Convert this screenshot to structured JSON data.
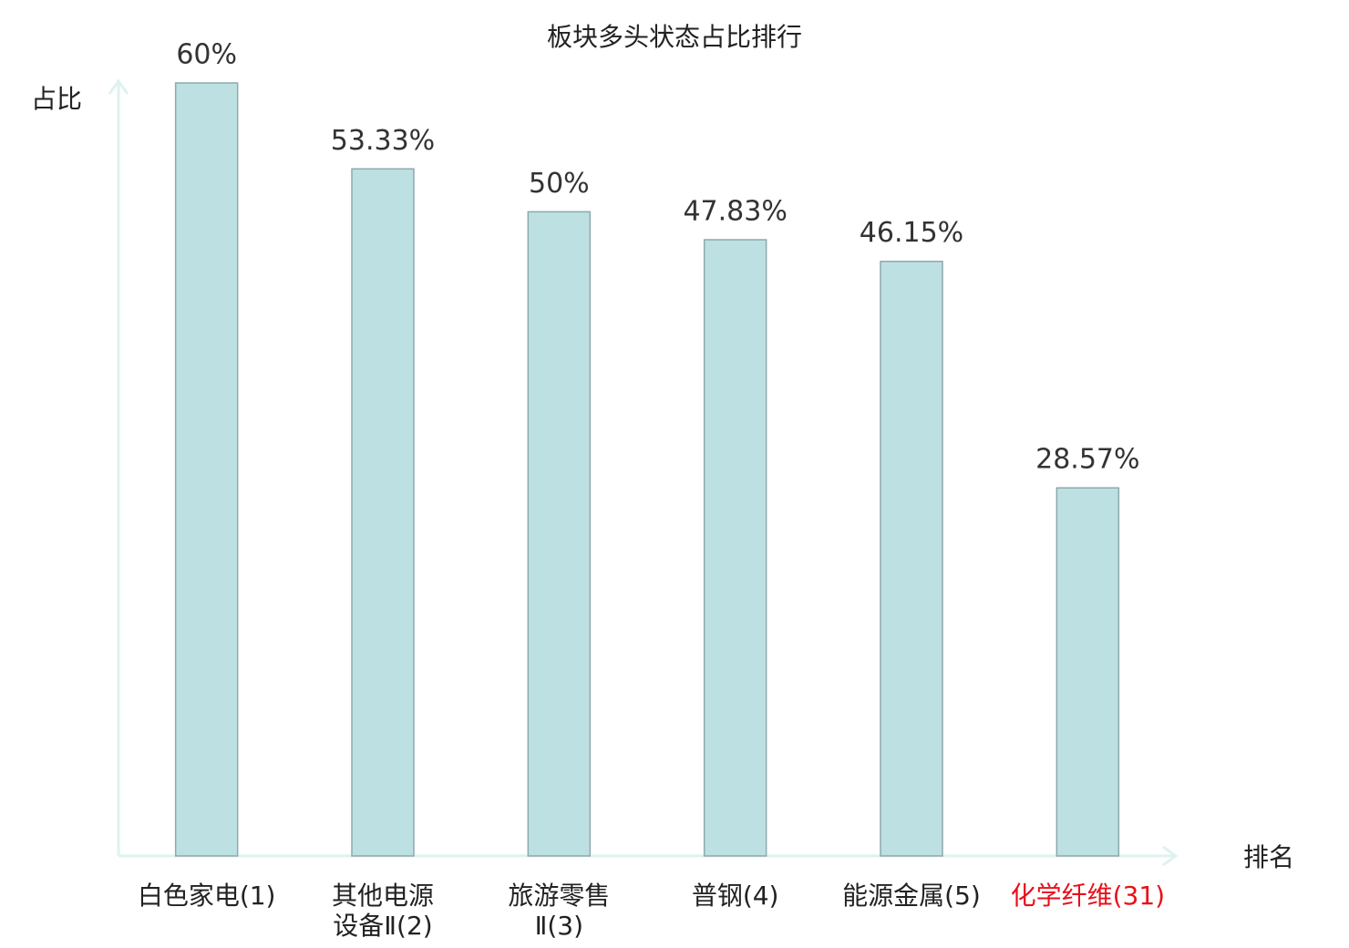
{
  "chart_data": {
    "type": "bar",
    "title": "板块多头状态占比排行",
    "y_label": "占比",
    "x_label": "排名",
    "categories": [
      "白色家电(1)",
      "其他电源\n设备Ⅱ(2)",
      "旅游零售\nⅡ(3)",
      "普钢(4)",
      "能源金属(5)",
      "化学纤维(31)"
    ],
    "label_colors": [
      "#222222",
      "#222222",
      "#222222",
      "#222222",
      "#222222",
      "#e8101a"
    ],
    "values": [
      60,
      53.33,
      50,
      47.83,
      46.15,
      28.57
    ],
    "value_labels": [
      "60%",
      "53.33%",
      "50%",
      "47.83%",
      "46.15%",
      "28.57%"
    ],
    "color": "#bde0e3",
    "edge_color": "#8fa9ac",
    "axis_color": "#dff2ef",
    "ylim": [
      0,
      60
    ]
  }
}
